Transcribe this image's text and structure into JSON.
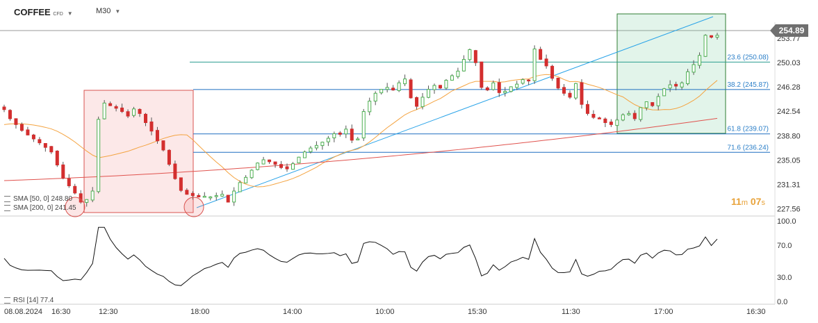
{
  "toolbar": {
    "symbol": "COFFEE",
    "symbol_tag": "CFD",
    "timeframe": "M30"
  },
  "legend": {
    "sma50": "SMA [50, 0] 248.80",
    "sma200": "SMA [200, 0] 241.45",
    "rsi": "RSI [14] 77.4"
  },
  "timer": {
    "minutes": "11",
    "minutes_unit": "m",
    "seconds": "07",
    "seconds_unit": "s"
  },
  "chart_data": {
    "type": "candlestick",
    "price_axis": {
      "ticks": [
        "253.77",
        "250.03",
        "246.28",
        "242.54",
        "238.80",
        "235.05",
        "231.31",
        "227.56"
      ],
      "ylim": [
        227.0,
        256.2
      ]
    },
    "current_price": "254.89",
    "time_axis": {
      "ticks": [
        "08.08.2024",
        "16:30",
        "12:30",
        "18:00",
        "14:00",
        "10:00",
        "15:30",
        "11:30",
        "17:00",
        "16:30"
      ]
    },
    "fibonacci": [
      {
        "label": "23.6 (250.08)",
        "value": 250.08
      },
      {
        "label": "38.2 (245.87)",
        "value": 245.87
      },
      {
        "label": "61.8 (239.07)",
        "value": 239.07
      },
      {
        "label": "71.6 (236.24)",
        "value": 236.24
      }
    ],
    "close_series": [
      242.8,
      241.4,
      240.5,
      239.6,
      238.9,
      238.3,
      237.7,
      237.0,
      236.3,
      234.3,
      232.3,
      231.1,
      230.0,
      228.6,
      229.0,
      230.3,
      241.3,
      243.8,
      243.4,
      243.0,
      242.5,
      241.8,
      242.9,
      242.2,
      240.8,
      239.5,
      238.0,
      236.6,
      234.4,
      232.2,
      230.4,
      229.8,
      229.6,
      229.4,
      229.5,
      229.4,
      229.6,
      229.8,
      228.6,
      230.3,
      231.6,
      232.4,
      233.5,
      234.6,
      235.1,
      234.8,
      234.4,
      233.9,
      233.7,
      234.5,
      235.5,
      236.3,
      236.9,
      237.3,
      237.8,
      238.4,
      239.1,
      239.0,
      239.8,
      238.1,
      238.3,
      242.5,
      244.1,
      245.3,
      245.9,
      246.2,
      245.8,
      246.9,
      247.5,
      244.6,
      243.3,
      244.7,
      245.9,
      246.5,
      246.1,
      247.3,
      248.0,
      248.7,
      250.5,
      252.0,
      250.0,
      246.2,
      245.8,
      246.9,
      245.4,
      245.6,
      246.3,
      246.7,
      247.4,
      247.2,
      252.1,
      250.5,
      249.5,
      247.6,
      246.1,
      245.3,
      244.7,
      246.8,
      243.6,
      242.2,
      241.6,
      241.4,
      240.8,
      240.5,
      241.2,
      242.0,
      242.2,
      241.4,
      243.1,
      244.0,
      243.4,
      244.8,
      246.0,
      246.6,
      246.4,
      246.9,
      248.6,
      249.7,
      251.1,
      254.2,
      253.9,
      254.2
    ],
    "sma50_start": 240.5,
    "sma50_end": 248.8,
    "sma200_start": 231.9,
    "sma200_end": 241.45,
    "rsi": {
      "ticks": [
        "100.0",
        "70.0",
        "30.0",
        "0.0"
      ],
      "ylim": [
        0,
        100
      ],
      "last": 77.4
    }
  }
}
